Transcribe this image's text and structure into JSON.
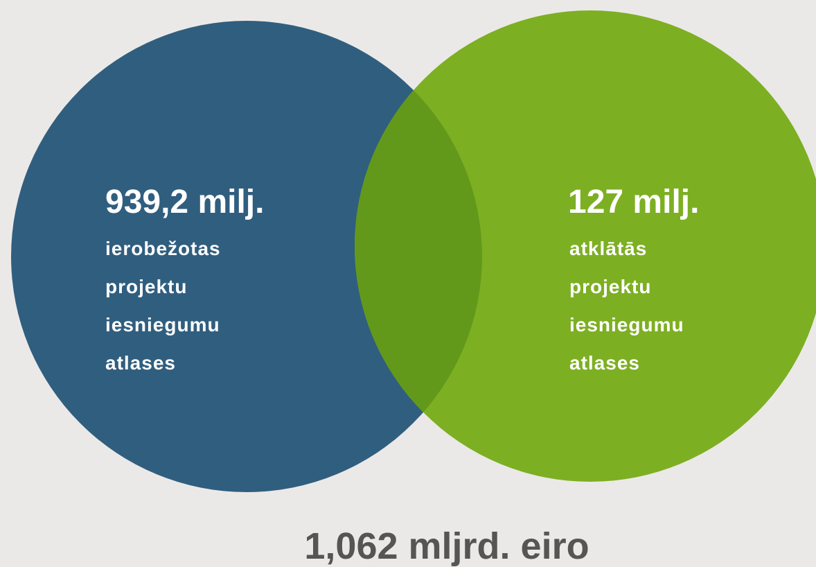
{
  "left": {
    "amount": "939,2 milj.",
    "lines": [
      "ierobežotas",
      "projektu",
      "iesniegumu",
      "atlases"
    ]
  },
  "right": {
    "amount": "127 milj.",
    "lines": [
      "atklātās",
      "projektu",
      "iesniegumu",
      "atlases"
    ]
  },
  "total": "1,062 mljrd. eiro"
}
